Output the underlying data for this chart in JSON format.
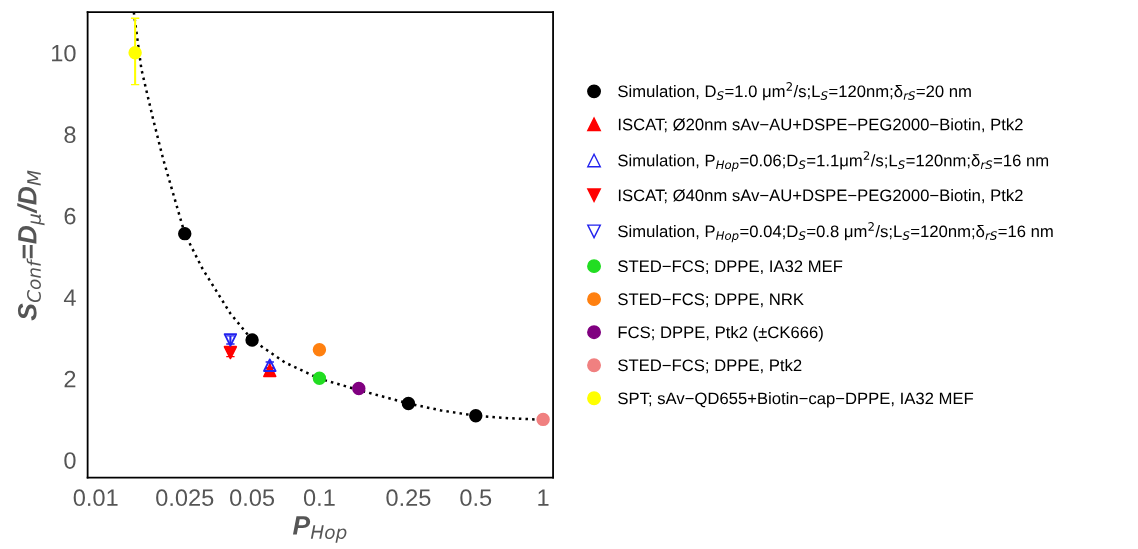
{
  "chart_data": {
    "type": "scatter",
    "xlabel": "P$_{Hop}$",
    "ylabel": "S$_{Conf}$=D$_{μ}$/D$_{M}$",
    "log": "x",
    "xlim": [
      0.0092,
      1.108
    ],
    "ylim": [
      -0.43,
      11
    ],
    "xticks": [
      0.01,
      0.025,
      0.05,
      0.1,
      0.25,
      0.5,
      1
    ],
    "yticks": [
      0,
      2,
      4,
      6,
      8,
      10
    ],
    "grid": false,
    "legend": "right",
    "series": [
      {
        "type": "line",
        "line_style": "dotted",
        "marker": "none",
        "color": "#000000",
        "x": [
          0.0148,
          0.016,
          0.018,
          0.02,
          0.025,
          0.03,
          0.04,
          0.05,
          0.07,
          0.1,
          0.15,
          0.25,
          0.35,
          0.5,
          0.7,
          1
        ],
        "values": [
          11,
          9.6,
          8.4,
          7.4,
          5.56,
          4.7,
          3.6,
          2.95,
          2.4,
          2.0,
          1.72,
          1.39,
          1.22,
          1.09,
          1.03,
          0.99
        ]
      },
      {
        "name": "Simulation, D$_{S}$=1.0 μm$^{2}$/s;L$_{S}$=120nm;δ$_{rS}$=20 nm",
        "marker": "circle",
        "color": "#000000",
        "x": [
          0.025,
          0.05,
          0.25,
          0.5
        ],
        "values": [
          5.56,
          2.95,
          1.39,
          1.09
        ]
      },
      {
        "name": "ISCAT; Ø20nm sAv−AU+DSPE−PEG2000−Biotin, Ptk2",
        "marker": "triangle",
        "color": "#ff0000",
        "x": [
          0.06
        ],
        "values": [
          2.2
        ],
        "errors": [
          0.07
        ]
      },
      {
        "name": "Simulation, P$_{Hop}$=0.06;D$_{S}$=1.1μm$^{2}$/s;L$_{S}$=120nm;δ$_{rS}$=16 nm",
        "marker": "triangle_open",
        "color": "#2222ee",
        "x": [
          0.06
        ],
        "values": [
          2.33
        ],
        "errors": [
          0.08
        ]
      },
      {
        "name": "ISCAT; Ø40nm sAv−AU+DSPE−PEG2000−Biotin, Ptk2",
        "marker": "triangle_down",
        "color": "#ff0000",
        "x": [
          0.04
        ],
        "values": [
          2.64
        ],
        "errors": [
          0.1
        ]
      },
      {
        "name": "Simulation, P$_{Hop}$=0.04;D$_{S}$=0.8 μm$^{2}$/s;L$_{S}$=120nm;δ$_{rS}$=16 nm",
        "marker": "triangle_down_open",
        "color": "#2222ee",
        "x": [
          0.04
        ],
        "values": [
          2.95
        ],
        "errors": [
          0.1
        ]
      },
      {
        "name": "STED−FCS; DPPE, IA32 MEF",
        "marker": "circle",
        "color": "#22dd22",
        "x": [
          0.1
        ],
        "values": [
          2.01
        ]
      },
      {
        "name": "STED−FCS; DPPE, NRK",
        "marker": "circle",
        "color": "#ff8010",
        "x": [
          0.1
        ],
        "values": [
          2.71
        ]
      },
      {
        "name": "FCS; DPPE, Ptk2 (±CK666)",
        "marker": "circle",
        "color": "#800080",
        "x": [
          0.15
        ],
        "values": [
          1.76
        ]
      },
      {
        "name": "STED−FCS; DPPE, Ptk2",
        "marker": "circle",
        "color": "#f08080",
        "x": [
          1
        ],
        "values": [
          1.0
        ]
      },
      {
        "name": "SPT; sAv−QD655+Biotin−cap−DPPE, IA32 MEF",
        "marker": "circle",
        "color": "#ffff00",
        "x": [
          0.015
        ],
        "values": [
          10.0
        ],
        "errors": [
          [
            9.22,
            10.85
          ]
        ]
      }
    ]
  }
}
